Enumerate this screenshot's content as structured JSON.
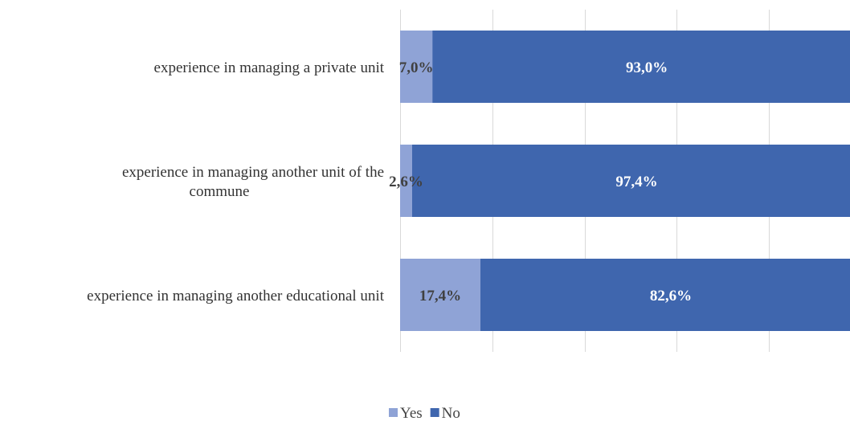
{
  "chart_data": {
    "type": "bar",
    "orientation": "horizontal",
    "stacked": "percent",
    "categories": [
      [
        "experience in managing a private unit"
      ],
      [
        "experience in managing another unit of the",
        "commune"
      ],
      [
        "experience in managing another educational unit"
      ]
    ],
    "series": [
      {
        "name": "Yes",
        "color": "#8FA3D6",
        "values": [
          7.0,
          2.6,
          17.4
        ],
        "labels": [
          "7,0%",
          "2,6%",
          "17,4%"
        ],
        "label_color": "#404040"
      },
      {
        "name": "No",
        "color": "#3F66AE",
        "values": [
          93.0,
          97.4,
          82.6
        ],
        "labels": [
          "93,0%",
          "97,4%",
          "82,6%"
        ],
        "label_color": "#FFFFFF"
      }
    ],
    "xlim": [
      0,
      100
    ],
    "grid": true,
    "gridline_color": "#D9D9D9",
    "legend_position": "bottom"
  }
}
